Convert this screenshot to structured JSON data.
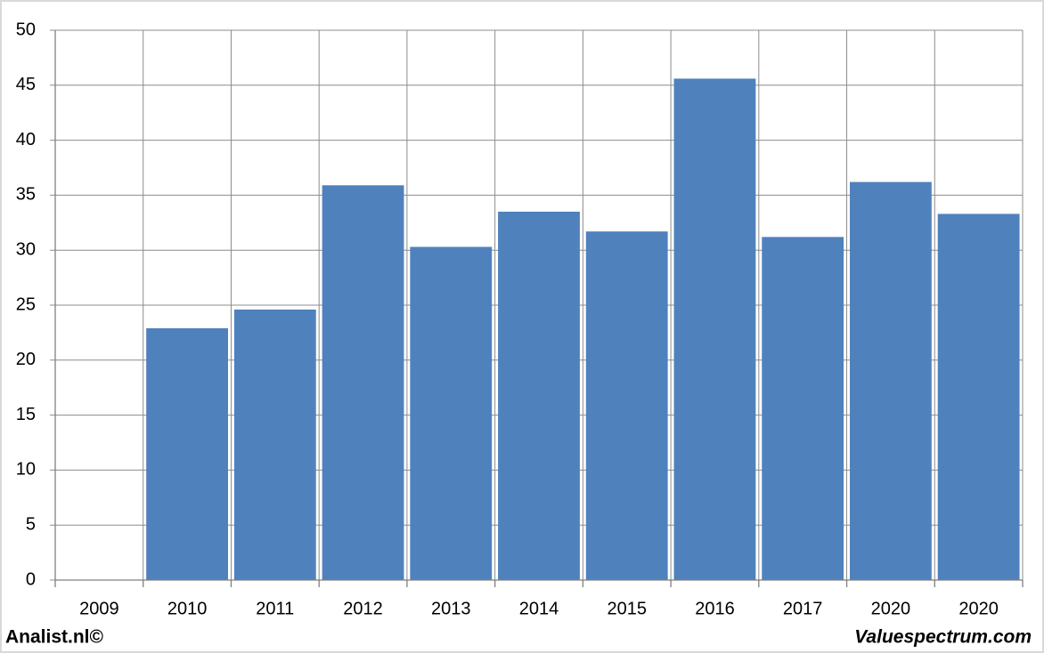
{
  "chart_data": {
    "type": "bar",
    "categories": [
      "2009",
      "2010",
      "2011",
      "2012",
      "2013",
      "2014",
      "2015",
      "2016",
      "2017",
      "2020",
      "2020"
    ],
    "values": [
      0,
      22.9,
      24.6,
      35.9,
      30.3,
      33.5,
      31.7,
      45.6,
      31.2,
      36.2,
      33.3
    ],
    "color": "#4f81bd",
    "ylim": [
      0,
      50
    ],
    "yticks": [
      0,
      5,
      10,
      15,
      20,
      25,
      30,
      35,
      40,
      45,
      50
    ],
    "grid": true,
    "annotations": [
      "Analist.nl©",
      "Valuespectrum.com"
    ]
  }
}
